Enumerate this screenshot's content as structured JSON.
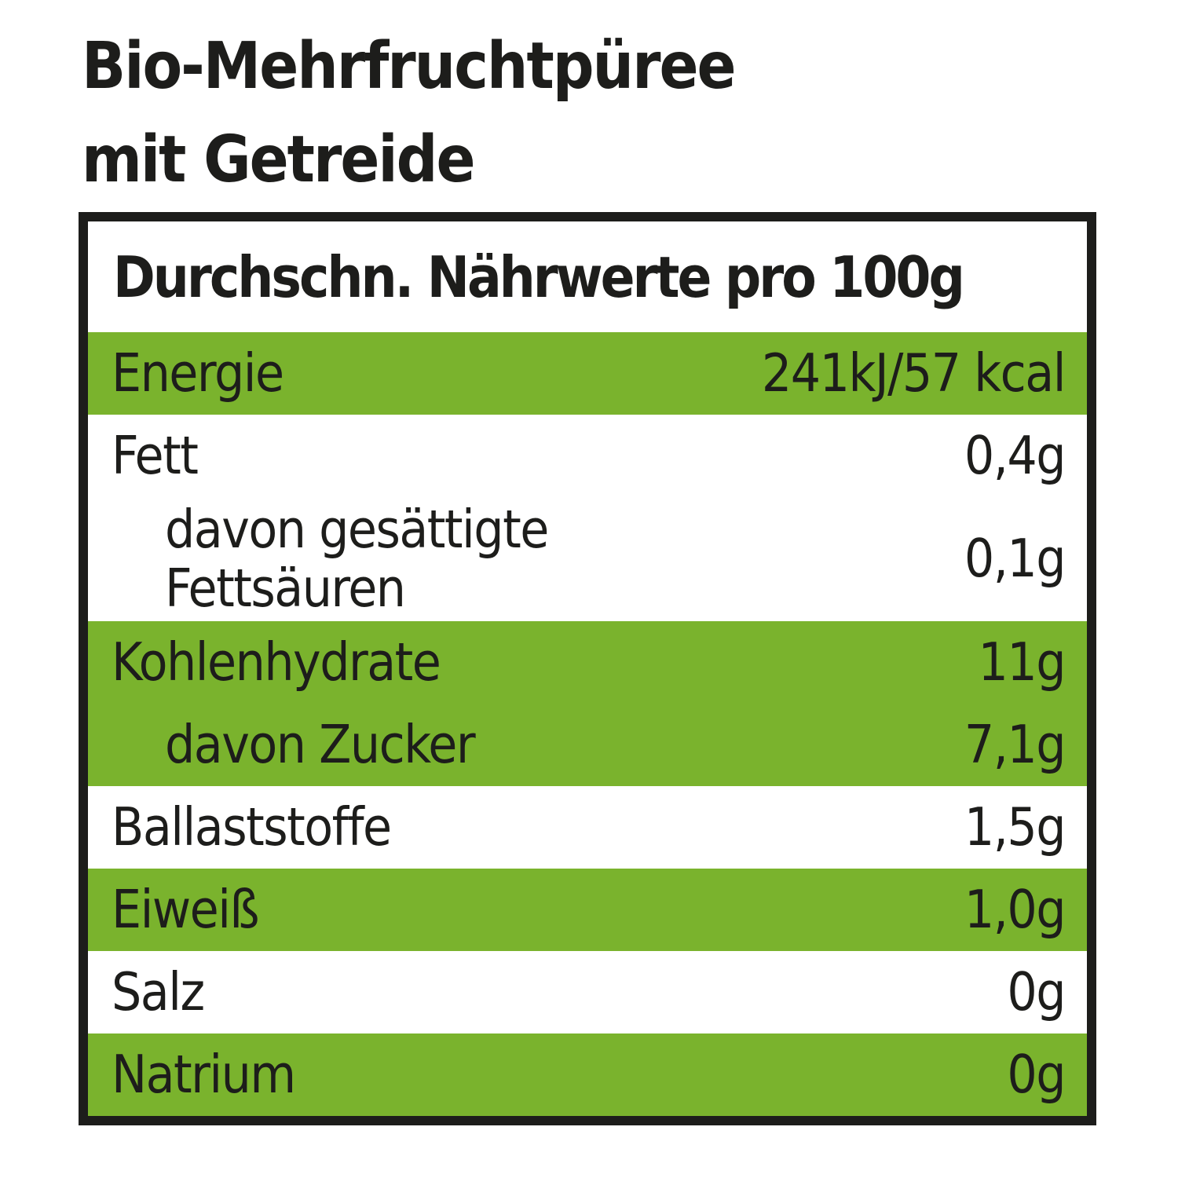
{
  "title": {
    "line1": "Bio-Mehrfruchtpüree",
    "line2": "mit Getreide"
  },
  "table": {
    "header": "Durchschn. Nährwerte pro 100g",
    "rows": [
      {
        "label": "Energie",
        "value": "241kJ/57 kcal",
        "highlighted": true,
        "indent": false
      },
      {
        "label": "Fett",
        "value": "0,4g",
        "highlighted": false,
        "indent": false
      },
      {
        "label": "davon gesättigte Fettsäuren",
        "value": "0,1g",
        "highlighted": false,
        "indent": true
      },
      {
        "label": "Kohlenhydrate",
        "value": "11g",
        "highlighted": true,
        "indent": false
      },
      {
        "label": "davon Zucker",
        "value": "7,1g",
        "highlighted": true,
        "indent": true
      },
      {
        "label": "Ballaststoffe",
        "value": "1,5g",
        "highlighted": false,
        "indent": false
      },
      {
        "label": "Eiweiß",
        "value": "1,0g",
        "highlighted": true,
        "indent": false
      },
      {
        "label": "Salz",
        "value": "0g",
        "highlighted": false,
        "indent": false
      },
      {
        "label": "Natrium",
        "value": "0g",
        "highlighted": true,
        "indent": false
      }
    ],
    "colors": {
      "highlight_green": "#7ab32d",
      "text_black": "#1d1d1b",
      "border_black": "#1d1d1b"
    }
  }
}
